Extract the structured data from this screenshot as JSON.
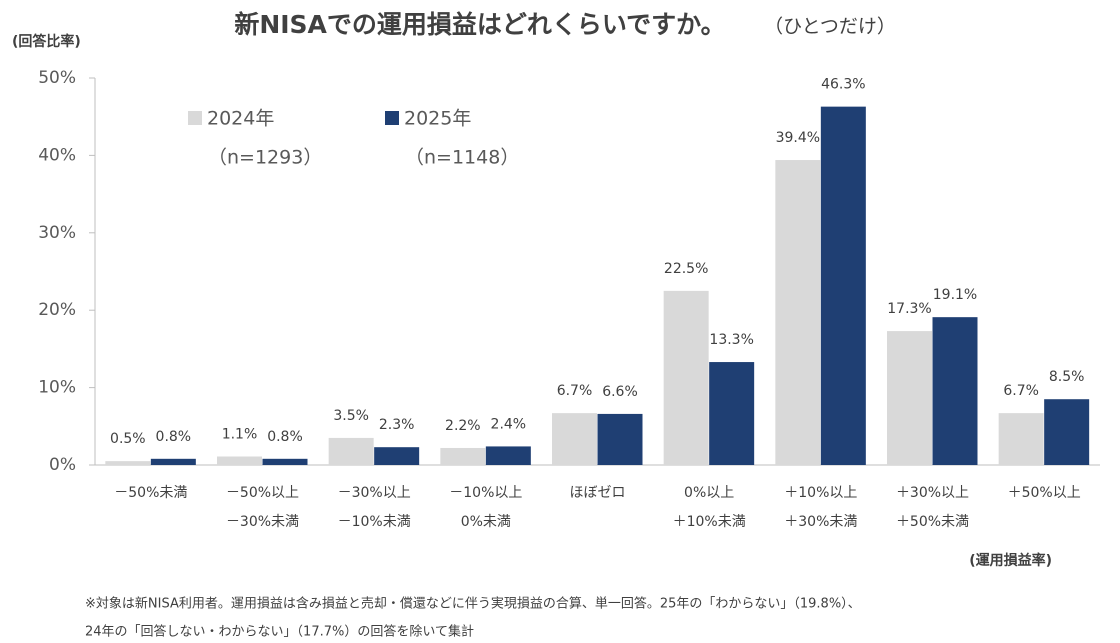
{
  "chart_data": {
    "type": "bar",
    "title": "新NISAでの運用損益はどれくらいですか。",
    "subtitle": "（ひとつだけ）",
    "y_axis_label": "(回答比率)",
    "x_axis_label": "(運用損益率)",
    "categories": [
      [
        "－50%未満"
      ],
      [
        "－50%以上",
        "－30%未満"
      ],
      [
        "－30%以上",
        "－10%未満"
      ],
      [
        "－10%以上",
        "0%未満"
      ],
      [
        "ほぼゼロ"
      ],
      [
        "0%以上",
        "＋10%未満"
      ],
      [
        "＋10%以上",
        "＋30%未満"
      ],
      [
        "＋30%以上",
        "＋50%未満"
      ],
      [
        "＋50%以上"
      ]
    ],
    "series": [
      {
        "name": "2024年",
        "note": "（n=1293）",
        "color": "#d9d9d9",
        "values": [
          0.5,
          1.1,
          3.5,
          2.2,
          6.7,
          22.5,
          39.4,
          17.3,
          6.7
        ],
        "value_labels": [
          "0.5%",
          "1.1%",
          "3.5%",
          "2.2%",
          "6.7%",
          "22.5%",
          "39.4%",
          "17.3%",
          "6.7%"
        ]
      },
      {
        "name": "2025年",
        "note": "（n=1148）",
        "color": "#1f3f73",
        "values": [
          0.8,
          0.8,
          2.3,
          2.4,
          6.6,
          13.3,
          46.3,
          19.1,
          8.5
        ],
        "value_labels": [
          "0.8%",
          "0.8%",
          "2.3%",
          "2.4%",
          "6.6%",
          "13.3%",
          "46.3%",
          "19.1%",
          "8.5%"
        ]
      }
    ],
    "ylim": [
      0,
      50
    ],
    "yticks": [
      {
        "value": 0,
        "label": "0%"
      },
      {
        "value": 10,
        "label": "10%"
      },
      {
        "value": 20,
        "label": "20%"
      },
      {
        "value": 30,
        "label": "30%"
      },
      {
        "value": 40,
        "label": "40%"
      },
      {
        "value": 50,
        "label": "50%"
      }
    ],
    "footnotes": [
      "※対象は新NISA利用者。運用損益は含み損益と売却・償還などに伴う実現損益の合算、単一回答。25年の「わからない」（19.8%）、",
      "24年の「回答しない・わからない」（17.7%）の回答を除いて集計"
    ]
  }
}
